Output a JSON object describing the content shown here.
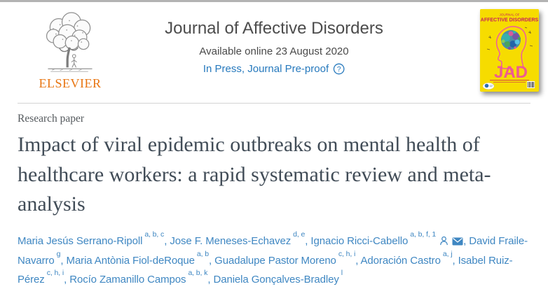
{
  "header": {
    "publisher_wordmark": "ELSEVIER",
    "journal_title": "Journal of Affective Disorders",
    "available_online": "Available online 23 August 2020",
    "status_link_label": "In Press, Journal Pre-proof",
    "help_icon_glyph": "?"
  },
  "cover_thumbnail": {
    "masthead_line1": "JOURNAL OF",
    "masthead_line2": "AFFECTIVE DISORDERS",
    "acronym": "JAD"
  },
  "article": {
    "type_label": "Research paper",
    "title": "Impact of viral epidemic outbreaks on mental health of healthcare workers: a rapid systematic review and meta-analysis"
  },
  "authors": {
    "separator": ", ",
    "list": [
      {
        "name": "Maria Jesús Serrano-Ripoll",
        "sup": "a, b, c"
      },
      {
        "name": "Jose F. Meneses-Echavez",
        "sup": "d, e"
      },
      {
        "name": "Ignacio Ricci-Cabello",
        "sup": "a, b, f, 1",
        "icons": [
          "person-icon",
          "envelope-icon"
        ]
      },
      {
        "name": "David Fraile-Navarro",
        "sup": "g"
      },
      {
        "name": "Maria Antònia Fiol-deRoque",
        "sup": "a, b"
      },
      {
        "name": "Guadalupe Pastor Moreno",
        "sup": "c, h, i"
      },
      {
        "name": "Adoración Castro",
        "sup": "a, j"
      },
      {
        "name": "Isabel Ruiz-Pérez",
        "sup": "c, h, i"
      },
      {
        "name": "Rocío Zamanillo Campos",
        "sup": "a, b, k"
      },
      {
        "name": "Daniela Gonçalves-Bradley",
        "sup": "l"
      }
    ]
  },
  "colors": {
    "link_blue": "#2679bd",
    "author_blue": "#3f87c2",
    "elsevier_orange": "#e87511",
    "title_gray": "#414c57",
    "cover_yellow": "#f6dc00",
    "cover_pink": "#e23a8e"
  }
}
